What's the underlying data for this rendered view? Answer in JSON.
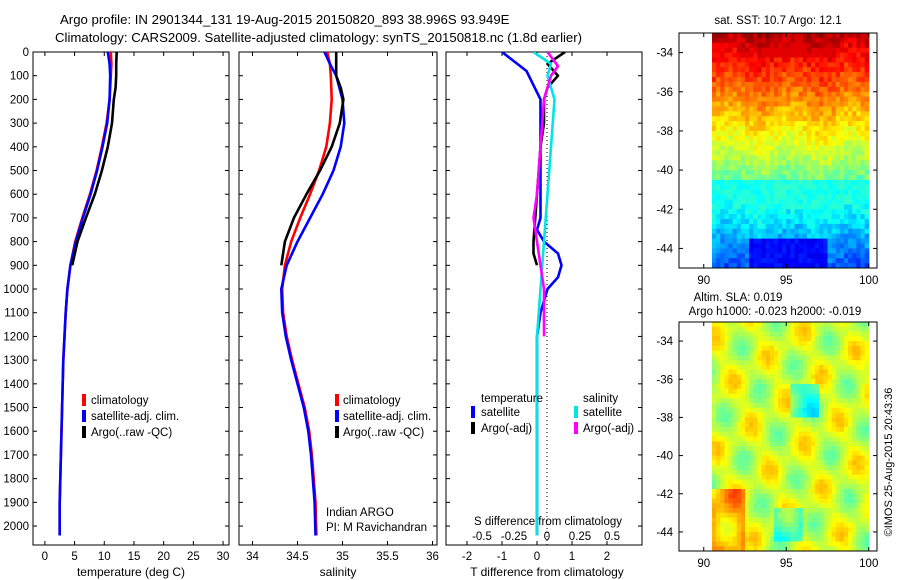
{
  "header": {
    "line1": "Argo profile: IN 2901344_131 19-Aug-2015 20150820_893 38.996S 93.949E",
    "line2": "Climatology: CARS2009. Satellite-adjusted climatology: synTS_20150818.nc (1.8d earlier)"
  },
  "colors": {
    "climatology": "#ff0000",
    "satellite": "#0000ff",
    "argo": "#000000",
    "salinity_sat": "#00e5e5",
    "salinity_argo": "#ff00ff"
  },
  "chart_data": [
    {
      "type": "line",
      "xlabel": "temperature (deg C)",
      "ylabel": "",
      "xlim": [
        -2,
        31
      ],
      "ylim": [
        2080,
        0
      ],
      "xticks": [
        0,
        5,
        10,
        15,
        20,
        25,
        30
      ],
      "yticks": [
        0,
        100,
        200,
        300,
        400,
        500,
        600,
        700,
        800,
        900,
        1000,
        1100,
        1200,
        1300,
        1400,
        1500,
        1600,
        1700,
        1800,
        1900,
        2000
      ],
      "legend": [
        "climatology",
        "satellite-adj. clim.",
        "Argo(..raw -QC)"
      ],
      "series": [
        {
          "name": "climatology",
          "color": "#ff0000",
          "x": [
            11.1,
            11.2,
            11.1,
            10.9,
            10.4,
            9.6,
            8.7,
            7.6,
            6.3,
            5.1,
            4.3,
            3.8,
            3.5,
            3.3,
            3.1,
            3.0,
            2.9,
            2.8,
            2.7,
            2.6,
            2.5,
            2.5
          ],
          "y": [
            0,
            50,
            100,
            200,
            300,
            400,
            500,
            600,
            700,
            800,
            900,
            1000,
            1100,
            1200,
            1300,
            1400,
            1500,
            1600,
            1700,
            1800,
            1900,
            2040
          ]
        },
        {
          "name": "satellite-adj. clim.",
          "color": "#0000ff",
          "x": [
            10.6,
            10.9,
            11.0,
            10.9,
            10.5,
            9.7,
            8.8,
            7.7,
            6.4,
            5.2,
            4.3,
            3.8,
            3.5,
            3.3,
            3.1,
            3.0,
            2.9,
            2.8,
            2.7,
            2.6,
            2.5,
            2.5
          ],
          "y": [
            0,
            50,
            100,
            200,
            300,
            400,
            500,
            600,
            700,
            800,
            900,
            1000,
            1100,
            1200,
            1300,
            1400,
            1500,
            1600,
            1700,
            1800,
            1900,
            2040
          ]
        },
        {
          "name": "Argo(..raw -QC)",
          "color": "#000000",
          "x": [
            12.1,
            12.0,
            12.0,
            11.9,
            11.6,
            11.3,
            10.6,
            9.6,
            8.4,
            6.9,
            5.5,
            4.6
          ],
          "y": [
            0,
            50,
            100,
            150,
            200,
            300,
            400,
            500,
            600,
            700,
            800,
            900
          ]
        }
      ]
    },
    {
      "type": "line",
      "xlabel": "salinity",
      "ylabel": "",
      "xlim": [
        33.85,
        36.05
      ],
      "ylim": [
        2080,
        0
      ],
      "xticks": [
        34,
        34.5,
        35,
        35.5,
        36
      ],
      "legend": [
        "climatology",
        "satellite-adj. clim.",
        "Argo(..raw -QC)"
      ],
      "annotation": [
        "Indian ARGO",
        "PI: M Ravichandran"
      ],
      "series": [
        {
          "name": "climatology",
          "color": "#ff0000",
          "x": [
            34.83,
            34.86,
            34.87,
            34.88,
            34.86,
            34.82,
            34.74,
            34.64,
            34.53,
            34.43,
            34.36,
            34.33,
            34.34,
            34.38,
            34.44,
            34.51,
            34.58,
            34.63,
            34.66,
            34.68,
            34.7,
            34.71
          ],
          "y": [
            0,
            50,
            100,
            200,
            300,
            400,
            500,
            600,
            700,
            800,
            900,
            1000,
            1100,
            1200,
            1300,
            1400,
            1500,
            1600,
            1700,
            1800,
            1900,
            2040
          ]
        },
        {
          "name": "satellite-adj. clim.",
          "color": "#0000ff",
          "x": [
            34.8,
            34.86,
            34.93,
            35.0,
            35.02,
            34.98,
            34.9,
            34.78,
            34.64,
            34.5,
            34.38,
            34.32,
            34.33,
            34.37,
            34.43,
            34.5,
            34.57,
            34.62,
            34.65,
            34.67,
            34.69,
            34.7
          ],
          "y": [
            0,
            50,
            100,
            200,
            300,
            400,
            500,
            600,
            700,
            800,
            900,
            1000,
            1100,
            1200,
            1300,
            1400,
            1500,
            1600,
            1700,
            1800,
            1900,
            2040
          ]
        },
        {
          "name": "Argo(..raw -QC)",
          "color": "#000000",
          "x": [
            34.93,
            34.93,
            34.93,
            34.98,
            35.01,
            34.97,
            34.88,
            34.75,
            34.6,
            34.46,
            34.36,
            34.32
          ],
          "y": [
            0,
            50,
            100,
            150,
            200,
            300,
            400,
            500,
            600,
            700,
            800,
            900
          ]
        }
      ]
    },
    {
      "type": "line",
      "xlabel": "T difference from climatology",
      "xlabel_top": "S difference from climatology",
      "xlim": [
        -2.6,
        3
      ],
      "ylim": [
        2080,
        0
      ],
      "xticks": [
        -2,
        -1,
        0,
        1,
        2
      ],
      "xticks_top": [
        "-0.5",
        "-0.25",
        "0",
        "0.25",
        "0.5"
      ],
      "legend_titles": [
        "temperature",
        "salinity"
      ],
      "legend": [
        "satellite",
        "Argo(-adj)",
        "satellite",
        "Argo(-adj)"
      ],
      "series": [
        {
          "name": "satellite",
          "color": "#0000ff",
          "x": [
            -1.0,
            -0.3,
            0.1,
            0.1,
            0.1,
            0.1,
            0.0,
            0.2,
            0.6,
            0.7,
            0.6,
            0.3,
            0.1,
            0.0,
            0.0,
            0.0,
            0.0,
            0.0,
            0.0,
            0.0
          ],
          "y": [
            0,
            80,
            200,
            400,
            600,
            700,
            750,
            800,
            850,
            900,
            950,
            1000,
            1100,
            1200,
            1400,
            1600,
            1800,
            1900,
            2000,
            2040
          ]
        },
        {
          "name": "Argo(-adj)",
          "color": "#000000",
          "x": [
            0.8,
            0.3,
            0.6,
            0.3,
            0.2,
            0.2,
            0.1,
            0.0,
            -0.1,
            -0.1,
            0.0
          ],
          "y": [
            0,
            50,
            100,
            150,
            200,
            300,
            400,
            600,
            800,
            850,
            900
          ]
        },
        {
          "name": "satellite",
          "color": "#00e5e5",
          "x": [
            -0.1,
            0.4,
            0.3,
            0.5,
            0.4,
            0.3,
            0.2,
            0.1,
            0.0,
            0.0,
            0.0,
            0.0,
            0.0
          ],
          "y": [
            0,
            50,
            100,
            200,
            400,
            600,
            800,
            1000,
            1200,
            1400,
            1700,
            2000,
            2040
          ]
        },
        {
          "name": "Argo(-adj)",
          "color": "#ff00ff",
          "x": [
            0.3,
            0.6,
            0.4,
            0.3,
            0.2,
            0.1,
            0.0,
            -0.1,
            0.0,
            0.1,
            0.2,
            0.2,
            0.2
          ],
          "y": [
            0,
            60,
            100,
            150,
            200,
            400,
            600,
            700,
            800,
            900,
            1000,
            1100,
            1200
          ]
        }
      ]
    },
    {
      "type": "heatmap",
      "title": "sat. SST: 10.7 Argo: 12.1",
      "xlim": [
        88.5,
        100.5
      ],
      "ylim": [
        -45,
        -33
      ],
      "xticks": [
        90,
        95,
        100
      ],
      "yticks": [
        -34,
        -36,
        -38,
        -40,
        -42,
        -44
      ],
      "data_x_range": [
        90.5,
        100
      ],
      "colorscale": "jet"
    },
    {
      "type": "heatmap",
      "title": "Altim. SLA: 0.019",
      "subtitle": "Argo h1000: -0.023 h2000: -0.019",
      "xlim": [
        88.5,
        100.5
      ],
      "ylim": [
        -45,
        -33
      ],
      "xticks": [
        90,
        95,
        100
      ],
      "yticks": [
        -34,
        -36,
        -38,
        -40,
        -42,
        -44
      ],
      "data_x_range": [
        90.5,
        100
      ],
      "colorscale": "jet"
    }
  ],
  "footer": {
    "timestamp": "©IMOS 25-Aug-2015 20:43:36"
  }
}
